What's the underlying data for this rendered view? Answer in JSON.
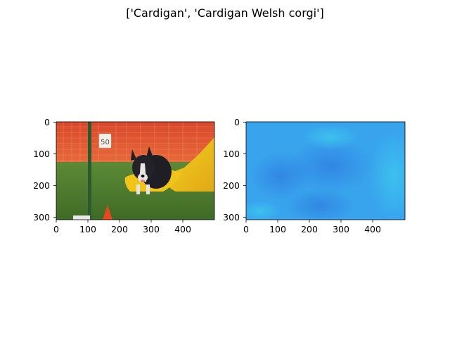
{
  "figure": {
    "suptitle": "['Cardigan', 'Cardigan Welsh corgi']"
  },
  "panels": [
    {
      "content": "photo of a black-and-white Cardigan Welsh corgi running on grass near a yellow agility tunnel, orange fence behind, orange cone in foreground",
      "sign_text": "50",
      "x_ticks": [
        "0",
        "100",
        "200",
        "300",
        "400"
      ],
      "y_ticks": [
        "0",
        "100",
        "200",
        "300"
      ]
    },
    {
      "content": "saliency / attribution heatmap rendered in light blue tones",
      "x_ticks": [
        "0",
        "100",
        "200",
        "300",
        "400"
      ],
      "y_ticks": [
        "0",
        "100",
        "200",
        "300"
      ]
    }
  ],
  "colors": {
    "heatmap_base": "#3aa6ee",
    "heatmap_dark": "#2f7fe0",
    "heatmap_light": "#35c3ec",
    "fence": "#e8452a",
    "grass": "#4f7a2e",
    "tunnel": "#f2c21a",
    "dog": "#1c1c22"
  }
}
